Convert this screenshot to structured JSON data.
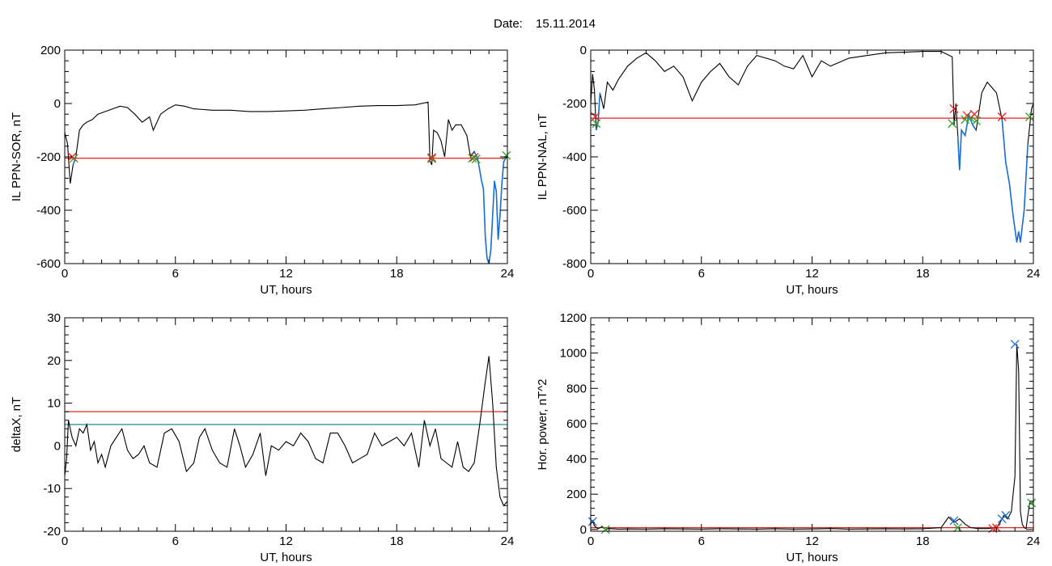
{
  "figure": {
    "header_label": "Date:",
    "date": "15.11.2014"
  },
  "colors": {
    "line": "#000000",
    "threshold_red": "#e8231d",
    "threshold_teal": "#1f8f99",
    "event": "#1b6fd6",
    "mark_red": "#e8231d",
    "mark_green": "#2aa52a",
    "mark_blue": "#1b6fd6"
  },
  "chart_data": [
    {
      "type": "line",
      "xlabel": "UT, hours",
      "ylabel": "IL PPN-SOR, nT",
      "xlim": [
        0,
        24
      ],
      "ylim": [
        -600,
        200
      ],
      "xticks": [
        0,
        6,
        12,
        18,
        24
      ],
      "yticks": [
        -600,
        -400,
        -200,
        0,
        200
      ],
      "grid": false,
      "thresholds": [
        {
          "y": -205,
          "color": "#e8231d"
        }
      ],
      "series": [
        {
          "x": [
            0,
            0.15,
            0.3,
            0.45,
            0.6,
            0.8,
            1.0,
            1.2,
            1.5,
            1.8,
            2.2,
            2.6,
            3.0,
            3.4,
            3.8,
            4.2,
            4.6,
            4.8,
            5.2,
            5.6,
            6.0,
            6.5,
            7.0,
            8.0,
            9.0,
            10.0,
            11.0,
            12.0,
            13.0,
            14.0,
            15.0,
            16.0,
            17.0,
            18.0,
            19.0,
            19.7,
            19.8,
            19.9,
            20.0,
            20.2,
            20.4,
            20.6,
            20.8,
            21.0,
            21.2,
            21.5,
            21.8,
            22.0,
            22.2,
            22.4,
            22.6,
            22.7,
            22.8,
            22.9,
            23.0,
            23.1,
            23.2,
            23.3,
            23.4,
            23.5,
            23.6,
            23.7,
            23.8,
            23.9,
            24.0
          ],
          "y": [
            -110,
            -150,
            -300,
            -230,
            -200,
            -100,
            -80,
            -70,
            -60,
            -40,
            -30,
            -20,
            -10,
            -15,
            -40,
            -70,
            -50,
            -100,
            -40,
            -20,
            -5,
            -10,
            -20,
            -25,
            -25,
            -30,
            -30,
            -28,
            -25,
            -20,
            -15,
            -10,
            -8,
            -8,
            -5,
            5,
            -215,
            -230,
            -100,
            -110,
            -140,
            -200,
            -60,
            -100,
            -80,
            -80,
            -120,
            -200,
            -180,
            -210,
            -290,
            -320,
            -500,
            -580,
            -600,
            -550,
            -420,
            -290,
            -330,
            -510,
            -420,
            -300,
            -220,
            -205,
            -195
          ]
        }
      ],
      "event_segments": [
        [
          0.35,
          0.6
        ],
        [
          22.2,
          23.9
        ]
      ],
      "markers": [
        {
          "x": 0.5,
          "y": -205,
          "color": "#2aa52a"
        },
        {
          "x": 0.4,
          "y": -200,
          "color": "#e8231d"
        },
        {
          "x": 19.9,
          "y": -207,
          "color": "#2aa52a"
        },
        {
          "x": 19.9,
          "y": -203,
          "color": "#e8231d"
        },
        {
          "x": 22.1,
          "y": -205,
          "color": "#2aa52a"
        },
        {
          "x": 22.2,
          "y": -202,
          "color": "#e8231d"
        },
        {
          "x": 22.3,
          "y": -208,
          "color": "#2aa52a"
        },
        {
          "x": 23.95,
          "y": -195,
          "color": "#2aa52a"
        }
      ]
    },
    {
      "type": "line",
      "xlabel": "UT, hours",
      "ylabel": "IL PPN-NAL, nT",
      "xlim": [
        0,
        24
      ],
      "ylim": [
        -800,
        0
      ],
      "xticks": [
        0,
        6,
        12,
        18,
        24
      ],
      "yticks": [
        -800,
        -600,
        -400,
        -200,
        0
      ],
      "grid": false,
      "thresholds": [
        {
          "y": -255,
          "color": "#e8231d"
        }
      ],
      "series": [
        {
          "x": [
            0,
            0.1,
            0.2,
            0.3,
            0.4,
            0.5,
            0.7,
            0.9,
            1.2,
            1.5,
            2.0,
            2.5,
            3.0,
            3.5,
            4.0,
            4.5,
            5.0,
            5.5,
            6.0,
            6.5,
            7.0,
            7.5,
            8.0,
            8.5,
            9.0,
            9.5,
            10.0,
            10.5,
            11.0,
            11.5,
            12.0,
            12.5,
            13.0,
            14.0,
            15.0,
            16.0,
            17.0,
            18.0,
            19.0,
            19.6,
            19.7,
            19.8,
            19.9,
            20.0,
            20.1,
            20.3,
            20.5,
            20.7,
            20.9,
            21.2,
            21.5,
            22.0,
            22.3,
            22.5,
            22.7,
            22.9,
            23.1,
            23.2,
            23.3,
            23.5,
            23.7,
            23.9,
            24.0
          ],
          "y": [
            -200,
            -90,
            -150,
            -300,
            -270,
            -160,
            -220,
            -120,
            -150,
            -110,
            -60,
            -30,
            -10,
            -40,
            -80,
            -60,
            -100,
            -190,
            -120,
            -80,
            -50,
            -100,
            -130,
            -60,
            -20,
            -30,
            -40,
            -60,
            -70,
            -20,
            -100,
            -40,
            -60,
            -30,
            -20,
            -10,
            -8,
            -5,
            -5,
            -25,
            -280,
            -200,
            -320,
            -450,
            -300,
            -320,
            -240,
            -280,
            -300,
            -160,
            -120,
            -160,
            -260,
            -420,
            -500,
            -620,
            -720,
            -680,
            -720,
            -600,
            -350,
            -220,
            -200
          ]
        }
      ],
      "event_segments": [
        [
          0.3,
          0.6
        ],
        [
          19.9,
          20.9
        ],
        [
          22.3,
          23.8
        ]
      ],
      "markers": [
        {
          "x": 0.3,
          "y": -275,
          "color": "#2aa52a"
        },
        {
          "x": 0.25,
          "y": -250,
          "color": "#e8231d"
        },
        {
          "x": 19.6,
          "y": -275,
          "color": "#2aa52a"
        },
        {
          "x": 19.7,
          "y": -220,
          "color": "#e8231d"
        },
        {
          "x": 20.3,
          "y": -260,
          "color": "#2aa52a"
        },
        {
          "x": 20.4,
          "y": -245,
          "color": "#e8231d"
        },
        {
          "x": 20.6,
          "y": -255,
          "color": "#2aa52a"
        },
        {
          "x": 20.8,
          "y": -240,
          "color": "#e8231d"
        },
        {
          "x": 20.9,
          "y": -265,
          "color": "#2aa52a"
        },
        {
          "x": 22.3,
          "y": -250,
          "color": "#e8231d"
        },
        {
          "x": 23.8,
          "y": -250,
          "color": "#2aa52a"
        }
      ]
    },
    {
      "type": "line",
      "xlabel": "UT, hours",
      "ylabel": "deltaX, nT",
      "xlim": [
        0,
        24
      ],
      "ylim": [
        -20,
        30
      ],
      "xticks": [
        0,
        6,
        12,
        18,
        24
      ],
      "yticks": [
        -20,
        -10,
        0,
        10,
        20,
        30
      ],
      "grid": false,
      "thresholds": [
        {
          "y": 8,
          "color": "#e8231d"
        },
        {
          "y": 5,
          "color": "#1f8f99"
        }
      ],
      "series": [
        {
          "x": [
            0,
            0.1,
            0.2,
            0.4,
            0.6,
            0.8,
            1.0,
            1.2,
            1.4,
            1.6,
            1.8,
            2.0,
            2.2,
            2.5,
            2.8,
            3.1,
            3.4,
            3.7,
            4.0,
            4.3,
            4.6,
            5.0,
            5.4,
            5.8,
            6.2,
            6.6,
            7.0,
            7.3,
            7.6,
            8.0,
            8.4,
            8.8,
            9.2,
            9.5,
            9.8,
            10.2,
            10.6,
            10.9,
            11.2,
            11.6,
            12.0,
            12.4,
            12.8,
            13.2,
            13.6,
            14.0,
            14.4,
            14.8,
            15.2,
            15.6,
            16.0,
            16.4,
            16.8,
            17.2,
            17.6,
            18.0,
            18.4,
            18.8,
            19.2,
            19.5,
            19.8,
            20.1,
            20.4,
            20.7,
            21.0,
            21.3,
            21.6,
            21.9,
            22.2,
            22.5,
            22.8,
            23.0,
            23.2,
            23.4,
            23.6,
            23.8,
            24.0
          ],
          "y": [
            -7,
            -3,
            6,
            2,
            0,
            4,
            3,
            5,
            -1,
            1,
            -4,
            -2,
            -5,
            0,
            2,
            4,
            -1,
            -3,
            -2,
            0,
            -4,
            -5,
            3,
            4,
            1,
            -6,
            -4,
            2,
            4,
            -1,
            -4,
            -5,
            4,
            0,
            -5,
            -2,
            3,
            -7,
            0,
            -1,
            1,
            0,
            3,
            1,
            -3,
            -4,
            3,
            3,
            0,
            -4,
            -3,
            -2,
            3,
            0,
            1,
            2,
            0,
            3,
            -5,
            6,
            0,
            4,
            -3,
            -4,
            -5,
            1,
            -5,
            -6,
            -4,
            5,
            15,
            21,
            10,
            -5,
            -12,
            -14,
            -13
          ]
        }
      ],
      "event_segments": [],
      "markers": []
    },
    {
      "type": "line",
      "xlabel": "UT, hours",
      "ylabel": "Hor. power, nT^2",
      "xlim": [
        0,
        24
      ],
      "ylim": [
        -10,
        1200
      ],
      "xticks": [
        0,
        6,
        12,
        18,
        24
      ],
      "yticks": [
        0,
        200,
        400,
        600,
        800,
        1000,
        1200
      ],
      "grid": false,
      "thresholds": [
        {
          "y": 10,
          "color": "#e8231d"
        }
      ],
      "series": [
        {
          "x": [
            0,
            0.1,
            0.2,
            0.4,
            0.6,
            0.8,
            1.0,
            1.5,
            2.0,
            3.0,
            4.0,
            5.0,
            6.0,
            7.0,
            8.0,
            9.0,
            10.0,
            11.0,
            12.0,
            13.0,
            14.0,
            15.0,
            16.0,
            17.0,
            18.0,
            19.0,
            19.4,
            19.7,
            20.0,
            20.3,
            20.6,
            21.0,
            21.5,
            22.0,
            22.2,
            22.4,
            22.6,
            22.8,
            23.0,
            23.1,
            23.2,
            23.3,
            23.4,
            23.5,
            23.6,
            23.8,
            24.0
          ],
          "y": [
            30,
            50,
            20,
            5,
            15,
            0,
            5,
            2,
            3,
            2,
            4,
            3,
            2,
            4,
            3,
            2,
            4,
            2,
            3,
            5,
            2,
            3,
            4,
            3,
            4,
            10,
            70,
            40,
            60,
            30,
            10,
            5,
            5,
            10,
            40,
            80,
            60,
            100,
            300,
            1050,
            900,
            100,
            30,
            10,
            5,
            150,
            140
          ]
        }
      ],
      "event_segments": [],
      "markers": [
        {
          "x": 0.1,
          "y": 45,
          "color": "#1b6fd6"
        },
        {
          "x": 0.8,
          "y": 0,
          "color": "#2aa52a"
        },
        {
          "x": 19.7,
          "y": 50,
          "color": "#1b6fd6"
        },
        {
          "x": 19.9,
          "y": 10,
          "color": "#2aa52a"
        },
        {
          "x": 21.8,
          "y": 5,
          "color": "#e8231d"
        },
        {
          "x": 22.0,
          "y": 10,
          "color": "#e8231d"
        },
        {
          "x": 22.3,
          "y": 60,
          "color": "#1b6fd6"
        },
        {
          "x": 22.5,
          "y": 80,
          "color": "#1b6fd6"
        },
        {
          "x": 23.0,
          "y": 1050,
          "color": "#1b6fd6"
        },
        {
          "x": 23.9,
          "y": 150,
          "color": "#2aa52a"
        }
      ]
    }
  ]
}
